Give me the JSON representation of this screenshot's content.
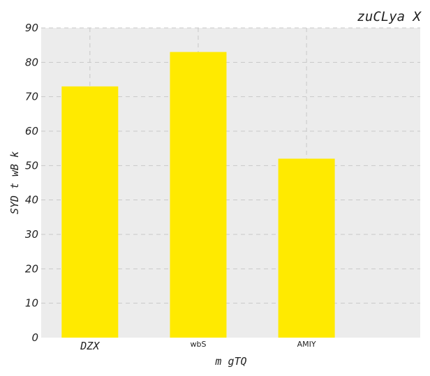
{
  "chart_data": {
    "type": "bar",
    "title": "zuCLya X",
    "xlabel": "m gTQ",
    "ylabel": "SYD t wB k",
    "categories": [
      "DZX",
      "wbS",
      "AMIY"
    ],
    "values": [
      73,
      83,
      52
    ],
    "ylim": [
      0,
      90
    ],
    "yticks": [
      "0",
      "10",
      "20",
      "30",
      "40",
      "50",
      "60",
      "70",
      "80",
      "90"
    ],
    "grid": true,
    "bar_color": "#ffea00",
    "plot_background": "#ececec",
    "grid_color": "#c8c8c8"
  }
}
